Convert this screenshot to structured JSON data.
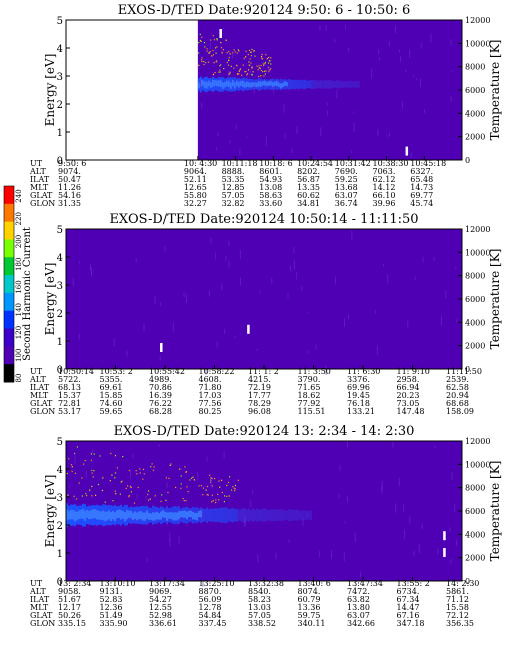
{
  "colors": {
    "background": "#5000b4",
    "band": "#1e50ff",
    "band_core": "#3c82ff",
    "speckle": "#ff8c28",
    "white": "#ffffff"
  },
  "colorbar": {
    "label": "Second Harmonic Current",
    "ticks": [
      "240",
      "220",
      "200",
      "180",
      "160",
      "140",
      "120",
      "100",
      "80"
    ],
    "colors": [
      "#ff0000",
      "#ff7800",
      "#ffd200",
      "#78ff00",
      "#00c832",
      "#00c8c8",
      "#0096ff",
      "#0032ff",
      "#3c00c8",
      "#5000b4",
      "#000000"
    ]
  },
  "chart_data": [
    {
      "type": "heatmap",
      "title": "EXOS-D/TED   Date:920124   9:50: 6 - 10:50: 6",
      "ylabel": "Energy [eV]",
      "y2label": "Temperature [K]",
      "ylim": [
        0,
        5
      ],
      "y2lim": [
        0,
        12000
      ],
      "yticks": [
        "0",
        "1",
        "2",
        "3",
        "4",
        "5"
      ],
      "y2ticks": [
        "0",
        "2000",
        "4000",
        "6000",
        "8000",
        "10000",
        "12000"
      ],
      "data_start_fraction": 0.333,
      "band": {
        "center_eV": 2.7,
        "width_eV": 0.5,
        "fade_end_fraction": 0.74
      },
      "speckle_top_eV": 4.7,
      "white_marks": [
        {
          "t": 0.39,
          "eV": 4.5
        },
        {
          "t": 0.86,
          "eV": 0.3
        }
      ],
      "orbit": {
        "rows": [
          "UT",
          "ALT",
          "ILAT",
          "MLT",
          "GLAT",
          "GLON"
        ],
        "columns": [
          [
            "9:50: 6",
            "9074.",
            "50.47",
            "11.26",
            "54.16",
            "31.35"
          ],
          [
            "10: 4:30",
            "9064.",
            "52.11",
            "12.65",
            "55.80",
            "32.27"
          ],
          [
            "10:11:18",
            "8888.",
            "53.35",
            "12.85",
            "57.05",
            "32.82"
          ],
          [
            "10:18: 6",
            "8601.",
            "54.93",
            "13.08",
            "58.63",
            "33.60"
          ],
          [
            "10:24:54",
            "8202.",
            "56.87",
            "13.35",
            "60.62",
            "34.81"
          ],
          [
            "10:31:42",
            "7690.",
            "59.25",
            "13.68",
            "63.07",
            "36.74"
          ],
          [
            "10:38:30",
            "7063.",
            "62.12",
            "14.12",
            "66.10",
            "39.96"
          ],
          [
            "10:45:18",
            "6327.",
            "65.48",
            "14.73",
            "69.77",
            "45.74"
          ]
        ]
      }
    },
    {
      "type": "heatmap",
      "title": "EXOS-D/TED   Date:920124   10:50:14 - 11:11:50",
      "ylabel": "Energy [eV]",
      "y2label": "Temperature [K]",
      "ylim": [
        0,
        5
      ],
      "y2lim": [
        0,
        12000
      ],
      "yticks": [
        "0",
        "1",
        "2",
        "3",
        "4",
        "5"
      ],
      "y2ticks": [
        "0",
        "2000",
        "4000",
        "6000",
        "8000",
        "10000",
        "12000"
      ],
      "data_start_fraction": 0.0,
      "band": null,
      "speckle_top_eV": 0,
      "white_marks": [
        {
          "t": 0.24,
          "eV": 0.75
        },
        {
          "t": 0.46,
          "eV": 1.4
        }
      ],
      "orbit": {
        "rows": [
          "UT",
          "ALT",
          "ILAT",
          "MLT",
          "GLAT",
          "GLON"
        ],
        "columns": [
          [
            "10:50:14",
            "5722.",
            "68.13",
            "15.37",
            "72.81",
            "53.17"
          ],
          [
            "10:53: 2",
            "5355.",
            "69.61",
            "15.85",
            "74.60",
            "59.65"
          ],
          [
            "10:55:42",
            "4989.",
            "70.86",
            "16.39",
            "76.22",
            "68.28"
          ],
          [
            "10:58:22",
            "4608.",
            "71.80",
            "17.03",
            "77.56",
            "80.25"
          ],
          [
            "11: 1: 2",
            "4215.",
            "72.19",
            "17.77",
            "78.29",
            "96.08"
          ],
          [
            "11: 3:50",
            "3790.",
            "71.65",
            "18.62",
            "77.92",
            "115.51"
          ],
          [
            "11: 6:30",
            "3376.",
            "69.96",
            "19.45",
            "76.18",
            "133.21"
          ],
          [
            "11: 9:10",
            "2958.",
            "66.94",
            "20.23",
            "73.05",
            "147.48"
          ],
          [
            "11:11:50",
            "2539.",
            "62.58",
            "20.94",
            "68.68",
            "158.09"
          ]
        ]
      }
    },
    {
      "type": "heatmap",
      "title": "EXOS-D/TED   Date:920124   13: 2:34 - 14: 2:30",
      "ylabel": "Energy [eV]",
      "y2label": "Temperature [K]",
      "ylim": [
        0,
        5
      ],
      "y2lim": [
        0,
        12000
      ],
      "yticks": [
        "0",
        "1",
        "2",
        "3",
        "4",
        "5"
      ],
      "y2ticks": [
        "0",
        "2000",
        "4000",
        "6000",
        "8000",
        "10000",
        "12000"
      ],
      "data_start_fraction": 0.0,
      "band": {
        "center_eV": 2.35,
        "width_eV": 0.75,
        "fade_end_fraction": 0.62
      },
      "speckle_top_eV": 4.9,
      "white_marks": [
        {
          "t": 0.955,
          "eV": 1.0
        },
        {
          "t": 0.955,
          "eV": 1.6
        }
      ],
      "orbit": {
        "rows": [
          "UT",
          "ALT",
          "ILAT",
          "MLT",
          "GLAT",
          "GLON"
        ],
        "columns": [
          [
            "13: 2:34",
            "9058.",
            "51.67",
            "12.17",
            "50.26",
            "335.15"
          ],
          [
            "13:10:10",
            "9131.",
            "52.83",
            "12.36",
            "51.49",
            "335.90"
          ],
          [
            "13:17:34",
            "9069.",
            "54.27",
            "12.55",
            "52.98",
            "336.61"
          ],
          [
            "13:25:10",
            "8870.",
            "56.09",
            "12.78",
            "54.84",
            "337.45"
          ],
          [
            "13:32:38",
            "8540.",
            "58.23",
            "13.03",
            "57.05",
            "338.52"
          ],
          [
            "13:40: 6",
            "8074.",
            "60.79",
            "13.36",
            "59.75",
            "340.11"
          ],
          [
            "13:47:34",
            "7472.",
            "63.82",
            "13.80",
            "63.07",
            "342.66"
          ],
          [
            "13:55: 2",
            "6734.",
            "67.34",
            "14.47",
            "67.16",
            "347.18"
          ],
          [
            "14: 2:30",
            "5861.",
            "71.12",
            "15.58",
            "72.12",
            "356.35"
          ]
        ]
      }
    }
  ]
}
